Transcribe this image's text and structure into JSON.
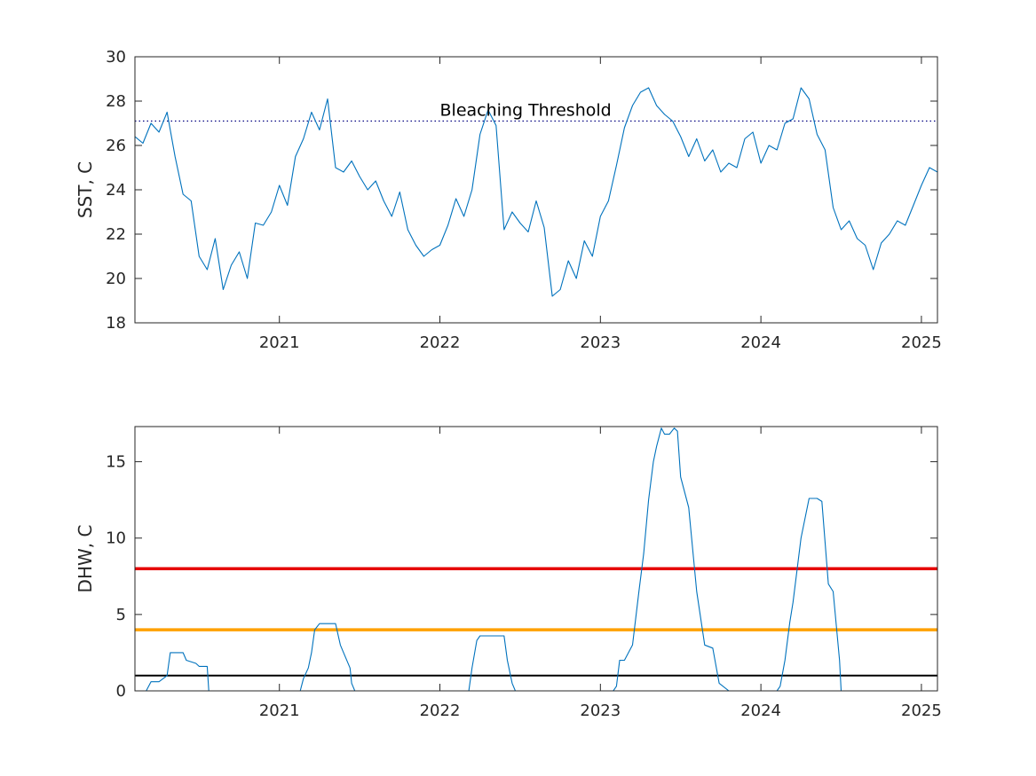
{
  "chart_data": [
    {
      "type": "line",
      "panel": "sst",
      "title": "",
      "xlabel": "",
      "ylabel": "SST, C",
      "xlim": [
        2020.1,
        2025.1
      ],
      "ylim": [
        18,
        30
      ],
      "xticks": [
        2021,
        2022,
        2023,
        2024,
        2025
      ],
      "xtick_labels": [
        "2021",
        "2022",
        "2023",
        "2024",
        "2025"
      ],
      "yticks": [
        18,
        20,
        22,
        24,
        26,
        28,
        30
      ],
      "ytick_labels": [
        "18",
        "20",
        "22",
        "24",
        "26",
        "28",
        "30"
      ],
      "grid": false,
      "series_color": "#0072BD",
      "threshold": {
        "y": 27.1,
        "label": "Bleaching Threshold",
        "label_x": 2022.0,
        "color": "#00007F",
        "style": "dotted"
      },
      "x": [
        2020.1,
        2020.15,
        2020.2,
        2020.25,
        2020.3,
        2020.35,
        2020.4,
        2020.45,
        2020.5,
        2020.55,
        2020.6,
        2020.65,
        2020.7,
        2020.75,
        2020.8,
        2020.85,
        2020.9,
        2020.95,
        2021.0,
        2021.05,
        2021.1,
        2021.15,
        2021.2,
        2021.25,
        2021.3,
        2021.35,
        2021.4,
        2021.45,
        2021.5,
        2021.55,
        2021.6,
        2021.65,
        2021.7,
        2021.75,
        2021.8,
        2021.85,
        2021.9,
        2021.95,
        2022.0,
        2022.05,
        2022.1,
        2022.15,
        2022.2,
        2022.25,
        2022.3,
        2022.35,
        2022.4,
        2022.45,
        2022.5,
        2022.55,
        2022.6,
        2022.65,
        2022.7,
        2022.75,
        2022.8,
        2022.85,
        2022.9,
        2022.95,
        2023.0,
        2023.05,
        2023.1,
        2023.15,
        2023.2,
        2023.25,
        2023.3,
        2023.35,
        2023.4,
        2023.45,
        2023.5,
        2023.55,
        2023.6,
        2023.65,
        2023.7,
        2023.75,
        2023.8,
        2023.85,
        2023.9,
        2023.95,
        2024.0,
        2024.05,
        2024.1,
        2024.15,
        2024.2,
        2024.25,
        2024.3,
        2024.35,
        2024.4,
        2024.45,
        2024.5,
        2024.55,
        2024.6,
        2024.65,
        2024.7,
        2024.75,
        2024.8,
        2024.85,
        2024.9,
        2024.95,
        2025.0,
        2025.05,
        2025.1
      ],
      "y": [
        26.4,
        26.1,
        27.0,
        26.6,
        27.5,
        25.5,
        23.8,
        23.5,
        21.0,
        20.4,
        21.8,
        19.5,
        20.6,
        21.2,
        20.0,
        22.5,
        22.4,
        23.0,
        24.2,
        23.3,
        25.5,
        26.3,
        27.5,
        26.7,
        28.1,
        25.0,
        24.8,
        25.3,
        24.6,
        24.0,
        24.4,
        23.5,
        22.8,
        23.9,
        22.2,
        21.5,
        21.0,
        21.3,
        21.5,
        22.4,
        23.6,
        22.8,
        24.0,
        26.5,
        27.6,
        26.9,
        22.2,
        23.0,
        22.5,
        22.1,
        23.5,
        22.3,
        19.2,
        19.5,
        20.8,
        20.0,
        21.7,
        21.0,
        22.8,
        23.5,
        25.1,
        26.8,
        27.8,
        28.4,
        28.6,
        27.8,
        27.4,
        27.1,
        26.4,
        25.5,
        26.3,
        25.3,
        25.8,
        24.8,
        25.2,
        25.0,
        26.3,
        26.6,
        25.2,
        26.0,
        25.8,
        27.0,
        27.2,
        28.6,
        28.1,
        26.5,
        25.8,
        23.2,
        22.2,
        22.6,
        21.8,
        21.5,
        20.4,
        21.6,
        22.0,
        22.6,
        22.4,
        23.3,
        24.2,
        25.0,
        24.8
      ]
    },
    {
      "type": "line",
      "panel": "dhw",
      "title": "",
      "xlabel": "",
      "ylabel": "DHW, C",
      "xlim": [
        2020.1,
        2025.1
      ],
      "ylim": [
        0,
        17.3
      ],
      "xticks": [
        2021,
        2022,
        2023,
        2024,
        2025
      ],
      "xtick_labels": [
        "2021",
        "2022",
        "2023",
        "2024",
        "2025"
      ],
      "yticks": [
        0,
        5,
        10,
        15
      ],
      "ytick_labels": [
        "0",
        "5",
        "10",
        "15"
      ],
      "grid": false,
      "series_color": "#0072BD",
      "reference_lines": [
        {
          "y": 8,
          "color": "#E60000"
        },
        {
          "y": 4,
          "color": "#FFA000"
        },
        {
          "y": 1,
          "color": "#000000"
        }
      ],
      "x": [
        2020.1,
        2020.17,
        2020.2,
        2020.25,
        2020.3,
        2020.32,
        2020.4,
        2020.42,
        2020.48,
        2020.5,
        2020.55,
        2020.56,
        2021.13,
        2021.15,
        2021.18,
        2021.2,
        2021.22,
        2021.25,
        2021.35,
        2021.38,
        2021.4,
        2021.44,
        2021.45,
        2021.47,
        2022.18,
        2022.2,
        2022.23,
        2022.25,
        2022.4,
        2022.42,
        2022.45,
        2022.47,
        2023.08,
        2023.1,
        2023.12,
        2023.15,
        2023.2,
        2023.24,
        2023.27,
        2023.3,
        2023.33,
        2023.35,
        2023.38,
        2023.4,
        2023.43,
        2023.46,
        2023.48,
        2023.5,
        2023.55,
        2023.6,
        2023.65,
        2023.7,
        2023.74,
        2023.8,
        2024.1,
        2024.12,
        2024.15,
        2024.18,
        2024.2,
        2024.25,
        2024.3,
        2024.35,
        2024.38,
        2024.42,
        2024.45,
        2024.49,
        2024.5,
        2025.1
      ],
      "y": [
        0,
        0,
        0.6,
        0.6,
        1.0,
        2.5,
        2.5,
        2.0,
        1.8,
        1.6,
        1.6,
        0,
        0,
        0.8,
        1.5,
        2.5,
        4.0,
        4.4,
        4.4,
        3.0,
        2.5,
        1.5,
        0.5,
        0,
        0,
        1.5,
        3.3,
        3.6,
        3.6,
        2.0,
        0.5,
        0,
        0,
        0.3,
        2.0,
        2.0,
        3.0,
        6.5,
        9.0,
        12.5,
        15.0,
        16.0,
        17.2,
        16.8,
        16.8,
        17.2,
        17.0,
        14.0,
        12.0,
        6.5,
        3.0,
        2.8,
        0.5,
        0,
        0,
        0.3,
        2.0,
        4.5,
        5.8,
        10.0,
        12.6,
        12.6,
        12.4,
        7.0,
        6.5,
        2.0,
        0,
        0
      ]
    }
  ]
}
